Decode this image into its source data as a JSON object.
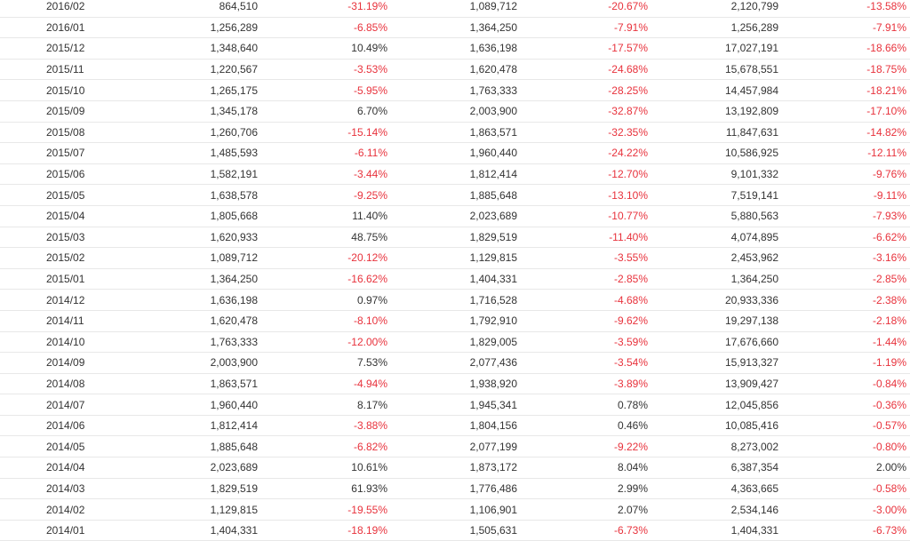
{
  "colors": {
    "text": "#333333",
    "negative": "#e8323c",
    "border": "#e8e8e8"
  },
  "rows": [
    {
      "month": "2016/02",
      "v1": "864,510",
      "p1": "-31.19%",
      "v2": "1,089,712",
      "p2": "-20.67%",
      "v3": "2,120,799",
      "p3": "-13.58%"
    },
    {
      "month": "2016/01",
      "v1": "1,256,289",
      "p1": "-6.85%",
      "v2": "1,364,250",
      "p2": "-7.91%",
      "v3": "1,256,289",
      "p3": "-7.91%"
    },
    {
      "month": "2015/12",
      "v1": "1,348,640",
      "p1": "10.49%",
      "v2": "1,636,198",
      "p2": "-17.57%",
      "v3": "17,027,191",
      "p3": "-18.66%"
    },
    {
      "month": "2015/11",
      "v1": "1,220,567",
      "p1": "-3.53%",
      "v2": "1,620,478",
      "p2": "-24.68%",
      "v3": "15,678,551",
      "p3": "-18.75%"
    },
    {
      "month": "2015/10",
      "v1": "1,265,175",
      "p1": "-5.95%",
      "v2": "1,763,333",
      "p2": "-28.25%",
      "v3": "14,457,984",
      "p3": "-18.21%"
    },
    {
      "month": "2015/09",
      "v1": "1,345,178",
      "p1": "6.70%",
      "v2": "2,003,900",
      "p2": "-32.87%",
      "v3": "13,192,809",
      "p3": "-17.10%"
    },
    {
      "month": "2015/08",
      "v1": "1,260,706",
      "p1": "-15.14%",
      "v2": "1,863,571",
      "p2": "-32.35%",
      "v3": "11,847,631",
      "p3": "-14.82%"
    },
    {
      "month": "2015/07",
      "v1": "1,485,593",
      "p1": "-6.11%",
      "v2": "1,960,440",
      "p2": "-24.22%",
      "v3": "10,586,925",
      "p3": "-12.11%"
    },
    {
      "month": "2015/06",
      "v1": "1,582,191",
      "p1": "-3.44%",
      "v2": "1,812,414",
      "p2": "-12.70%",
      "v3": "9,101,332",
      "p3": "-9.76%"
    },
    {
      "month": "2015/05",
      "v1": "1,638,578",
      "p1": "-9.25%",
      "v2": "1,885,648",
      "p2": "-13.10%",
      "v3": "7,519,141",
      "p3": "-9.11%"
    },
    {
      "month": "2015/04",
      "v1": "1,805,668",
      "p1": "11.40%",
      "v2": "2,023,689",
      "p2": "-10.77%",
      "v3": "5,880,563",
      "p3": "-7.93%"
    },
    {
      "month": "2015/03",
      "v1": "1,620,933",
      "p1": "48.75%",
      "v2": "1,829,519",
      "p2": "-11.40%",
      "v3": "4,074,895",
      "p3": "-6.62%"
    },
    {
      "month": "2015/02",
      "v1": "1,089,712",
      "p1": "-20.12%",
      "v2": "1,129,815",
      "p2": "-3.55%",
      "v3": "2,453,962",
      "p3": "-3.16%"
    },
    {
      "month": "2015/01",
      "v1": "1,364,250",
      "p1": "-16.62%",
      "v2": "1,404,331",
      "p2": "-2.85%",
      "v3": "1,364,250",
      "p3": "-2.85%"
    },
    {
      "month": "2014/12",
      "v1": "1,636,198",
      "p1": "0.97%",
      "v2": "1,716,528",
      "p2": "-4.68%",
      "v3": "20,933,336",
      "p3": "-2.38%"
    },
    {
      "month": "2014/11",
      "v1": "1,620,478",
      "p1": "-8.10%",
      "v2": "1,792,910",
      "p2": "-9.62%",
      "v3": "19,297,138",
      "p3": "-2.18%"
    },
    {
      "month": "2014/10",
      "v1": "1,763,333",
      "p1": "-12.00%",
      "v2": "1,829,005",
      "p2": "-3.59%",
      "v3": "17,676,660",
      "p3": "-1.44%"
    },
    {
      "month": "2014/09",
      "v1": "2,003,900",
      "p1": "7.53%",
      "v2": "2,077,436",
      "p2": "-3.54%",
      "v3": "15,913,327",
      "p3": "-1.19%"
    },
    {
      "month": "2014/08",
      "v1": "1,863,571",
      "p1": "-4.94%",
      "v2": "1,938,920",
      "p2": "-3.89%",
      "v3": "13,909,427",
      "p3": "-0.84%"
    },
    {
      "month": "2014/07",
      "v1": "1,960,440",
      "p1": "8.17%",
      "v2": "1,945,341",
      "p2": "0.78%",
      "v3": "12,045,856",
      "p3": "-0.36%"
    },
    {
      "month": "2014/06",
      "v1": "1,812,414",
      "p1": "-3.88%",
      "v2": "1,804,156",
      "p2": "0.46%",
      "v3": "10,085,416",
      "p3": "-0.57%"
    },
    {
      "month": "2014/05",
      "v1": "1,885,648",
      "p1": "-6.82%",
      "v2": "2,077,199",
      "p2": "-9.22%",
      "v3": "8,273,002",
      "p3": "-0.80%"
    },
    {
      "month": "2014/04",
      "v1": "2,023,689",
      "p1": "10.61%",
      "v2": "1,873,172",
      "p2": "8.04%",
      "v3": "6,387,354",
      "p3": "2.00%"
    },
    {
      "month": "2014/03",
      "v1": "1,829,519",
      "p1": "61.93%",
      "v2": "1,776,486",
      "p2": "2.99%",
      "v3": "4,363,665",
      "p3": "-0.58%"
    },
    {
      "month": "2014/02",
      "v1": "1,129,815",
      "p1": "-19.55%",
      "v2": "1,106,901",
      "p2": "2.07%",
      "v3": "2,534,146",
      "p3": "-3.00%"
    },
    {
      "month": "2014/01",
      "v1": "1,404,331",
      "p1": "-18.19%",
      "v2": "1,505,631",
      "p2": "-6.73%",
      "v3": "1,404,331",
      "p3": "-6.73%"
    }
  ]
}
